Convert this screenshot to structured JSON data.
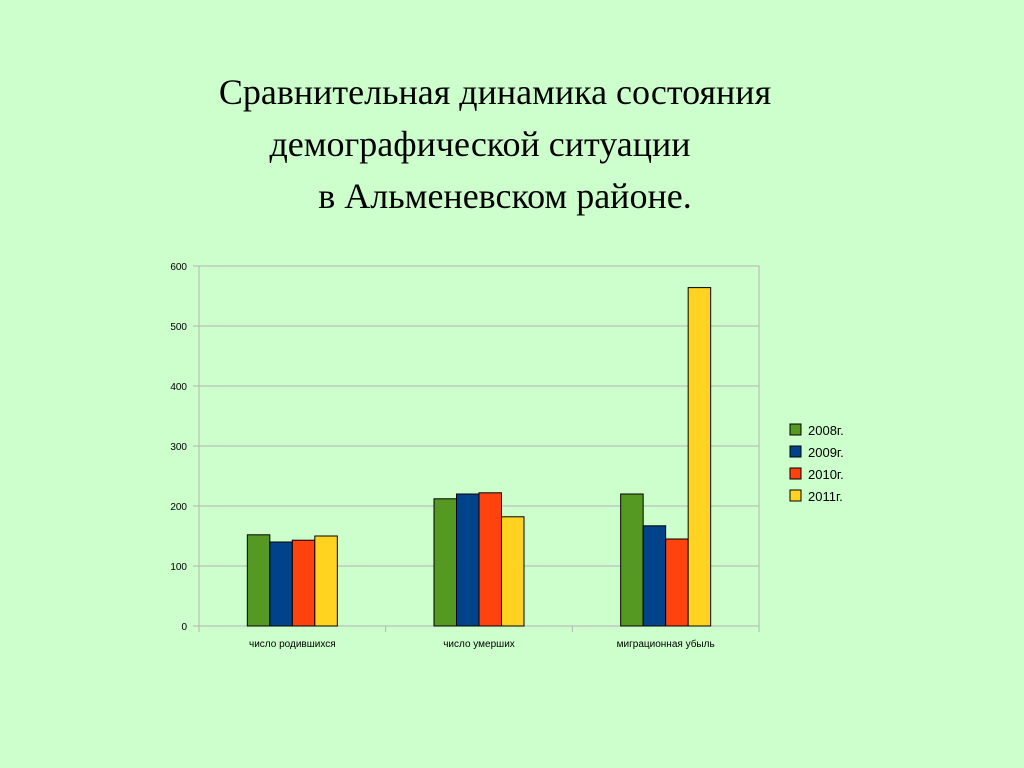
{
  "slide": {
    "title_lines": [
      "Сравнительная динамика состояния",
      "демографической ситуации",
      "в Альменевском районе."
    ]
  },
  "chart_data": {
    "type": "bar",
    "categories": [
      "число родившихся",
      "число умерших",
      "миграционная убыль"
    ],
    "series": [
      {
        "name": "2008г.",
        "color": "#559922",
        "values": [
          152,
          212,
          220
        ]
      },
      {
        "name": "2009г.",
        "color": "#00438a",
        "values": [
          140,
          220,
          167
        ]
      },
      {
        "name": "2010г.",
        "color": "#ff420e",
        "values": [
          143,
          222,
          145
        ]
      },
      {
        "name": "2011г.",
        "color": "#ffd320",
        "values": [
          150,
          182,
          564
        ]
      }
    ],
    "ylim": [
      0,
      600
    ],
    "yticks": [
      0,
      100,
      200,
      300,
      400,
      500,
      600
    ],
    "grid": true,
    "legend": "right",
    "title": "",
    "xlabel": "",
    "ylabel": ""
  }
}
